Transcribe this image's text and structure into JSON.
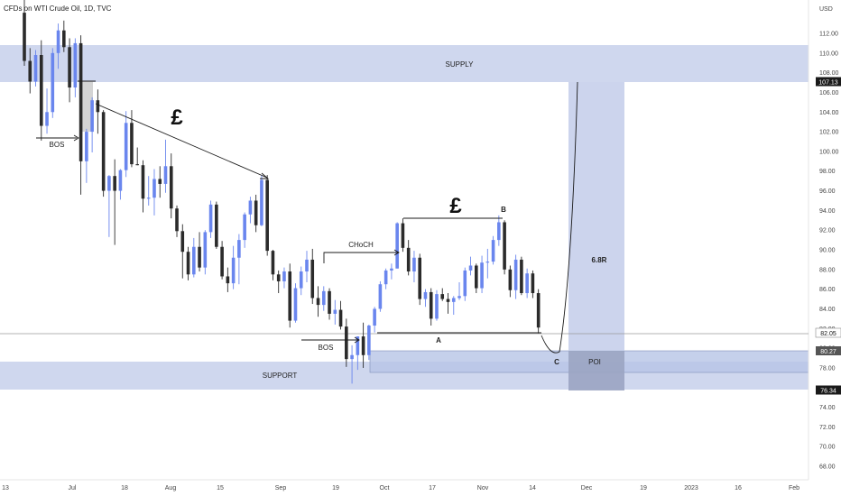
{
  "header": {
    "title": "CFDs on WTI Crude Oil, 1D, TVC",
    "currency": "USD"
  },
  "colors": {
    "up": "#6a86ee",
    "down": "#2b2b2b",
    "zone": "#aebde3",
    "zone_dark": "#8c9ed0",
    "price_tag": "#1a1a1a",
    "drawing": "#1a1a1a"
  },
  "chart_data": {
    "type": "candlestick",
    "title": "CFDs on WTI Crude Oil, 1D, TVC",
    "y_unit": "USD",
    "ylim": [
      67,
      116
    ],
    "y_ticks": [
      "68.00",
      "70.00",
      "72.00",
      "74.00",
      "76.00",
      "78.00",
      "80.00",
      "82.00",
      "84.00",
      "86.00",
      "88.00",
      "90.00",
      "92.00",
      "94.00",
      "96.00",
      "98.00",
      "100.00",
      "102.00",
      "104.00",
      "106.00",
      "108.00",
      "110.00",
      "112.00"
    ],
    "x_ticks": [
      "13",
      "Jul",
      "18",
      "Aug",
      "15",
      "Sep",
      "19",
      "Oct",
      "17",
      "Nov",
      "14",
      "Dec",
      "19",
      "2023",
      "16",
      "Feb"
    ],
    "price_labels": [
      "107.13",
      "82.05",
      "80.27",
      "76.34"
    ],
    "candles": [
      {
        "o": 114.1,
        "h": 116,
        "l": 108.7,
        "c": 109.2
      },
      {
        "o": 109.2,
        "h": 110.5,
        "l": 105.9,
        "c": 107.1
      },
      {
        "o": 107.1,
        "h": 110.3,
        "l": 106.6,
        "c": 109.8
      },
      {
        "o": 109.8,
        "h": 111.3,
        "l": 101.1,
        "c": 102.6
      },
      {
        "o": 102.6,
        "h": 106.4,
        "l": 101.8,
        "c": 104.0
      },
      {
        "o": 104.0,
        "h": 110.5,
        "l": 103.4,
        "c": 110.0
      },
      {
        "o": 110.0,
        "h": 113.0,
        "l": 108.4,
        "c": 112.3
      },
      {
        "o": 112.3,
        "h": 113.3,
        "l": 110.1,
        "c": 110.6
      },
      {
        "o": 110.6,
        "h": 111.5,
        "l": 105.0,
        "c": 106.5
      },
      {
        "o": 106.5,
        "h": 111.5,
        "l": 105.5,
        "c": 111.0
      },
      {
        "o": 111.0,
        "h": 111.8,
        "l": 95.6,
        "c": 99.0
      },
      {
        "o": 99.0,
        "h": 102.3,
        "l": 96.8,
        "c": 102.0
      },
      {
        "o": 102.0,
        "h": 105.5,
        "l": 99.9,
        "c": 105.2
      },
      {
        "o": 105.2,
        "h": 106.3,
        "l": 101.8,
        "c": 104.0
      },
      {
        "o": 104.0,
        "h": 104.2,
        "l": 95.4,
        "c": 96.0
      },
      {
        "o": 96.0,
        "h": 97.6,
        "l": 91.3,
        "c": 97.5
      },
      {
        "o": 97.5,
        "h": 99.2,
        "l": 90.5,
        "c": 96.0
      },
      {
        "o": 96.0,
        "h": 98.2,
        "l": 95.1,
        "c": 98.1
      },
      {
        "o": 98.1,
        "h": 104.1,
        "l": 97.4,
        "c": 102.9
      },
      {
        "o": 102.9,
        "h": 104.2,
        "l": 98.4,
        "c": 98.7
      },
      {
        "o": 98.7,
        "h": 100.4,
        "l": 98.6,
        "c": 98.6
      },
      {
        "o": 98.6,
        "h": 99.1,
        "l": 93.8,
        "c": 95.2
      },
      {
        "o": 95.2,
        "h": 97.5,
        "l": 94.5,
        "c": 95.3
      },
      {
        "o": 95.3,
        "h": 98.2,
        "l": 93.5,
        "c": 97.2
      },
      {
        "o": 97.2,
        "h": 98.5,
        "l": 95.3,
        "c": 96.7
      },
      {
        "o": 96.7,
        "h": 101.2,
        "l": 95.8,
        "c": 98.5
      },
      {
        "o": 98.5,
        "h": 99.8,
        "l": 93.2,
        "c": 94.2
      },
      {
        "o": 94.2,
        "h": 94.5,
        "l": 91.3,
        "c": 91.9
      },
      {
        "o": 91.9,
        "h": 92.6,
        "l": 87.1,
        "c": 89.8
      },
      {
        "o": 89.8,
        "h": 90.3,
        "l": 86.9,
        "c": 87.5
      },
      {
        "o": 87.5,
        "h": 91.2,
        "l": 87.2,
        "c": 90.3
      },
      {
        "o": 90.3,
        "h": 91.8,
        "l": 87.8,
        "c": 88.2
      },
      {
        "o": 88.2,
        "h": 92.0,
        "l": 87.5,
        "c": 91.8
      },
      {
        "o": 91.8,
        "h": 95.0,
        "l": 91.2,
        "c": 94.6
      },
      {
        "o": 94.6,
        "h": 94.9,
        "l": 90.1,
        "c": 90.3
      },
      {
        "o": 90.3,
        "h": 90.9,
        "l": 87.0,
        "c": 87.3
      },
      {
        "o": 87.3,
        "h": 88.2,
        "l": 85.7,
        "c": 86.6
      },
      {
        "o": 86.6,
        "h": 90.4,
        "l": 86.0,
        "c": 89.2
      },
      {
        "o": 89.2,
        "h": 91.6,
        "l": 86.5,
        "c": 91.0
      },
      {
        "o": 91.0,
        "h": 93.8,
        "l": 90.2,
        "c": 93.6
      },
      {
        "o": 93.6,
        "h": 95.4,
        "l": 92.7,
        "c": 95.0
      },
      {
        "o": 95.0,
        "h": 95.6,
        "l": 91.8,
        "c": 92.5
      },
      {
        "o": 92.5,
        "h": 97.6,
        "l": 92.4,
        "c": 97.1
      },
      {
        "o": 97.1,
        "h": 97.6,
        "l": 89.4,
        "c": 89.9
      },
      {
        "o": 89.9,
        "h": 90.0,
        "l": 86.9,
        "c": 87.5
      },
      {
        "o": 87.5,
        "h": 87.9,
        "l": 85.6,
        "c": 86.8
      },
      {
        "o": 86.8,
        "h": 88.2,
        "l": 86.1,
        "c": 87.8
      },
      {
        "o": 87.8,
        "h": 88.6,
        "l": 82.1,
        "c": 82.8
      },
      {
        "o": 82.8,
        "h": 86.6,
        "l": 82.6,
        "c": 86.1
      },
      {
        "o": 86.1,
        "h": 88.3,
        "l": 85.4,
        "c": 87.8
      },
      {
        "o": 87.8,
        "h": 89.9,
        "l": 86.7,
        "c": 89.0
      },
      {
        "o": 89.0,
        "h": 90.1,
        "l": 84.5,
        "c": 85.1
      },
      {
        "o": 85.1,
        "h": 86.3,
        "l": 83.2,
        "c": 84.4
      },
      {
        "o": 84.4,
        "h": 86.3,
        "l": 83.8,
        "c": 85.8
      },
      {
        "o": 85.8,
        "h": 86.1,
        "l": 82.9,
        "c": 83.5
      },
      {
        "o": 83.5,
        "h": 84.9,
        "l": 82.4,
        "c": 83.9
      },
      {
        "o": 83.9,
        "h": 84.8,
        "l": 81.9,
        "c": 82.2
      },
      {
        "o": 82.2,
        "h": 83.0,
        "l": 78.1,
        "c": 78.9
      },
      {
        "o": 78.9,
        "h": 80.3,
        "l": 76.4,
        "c": 79.3
      },
      {
        "o": 79.3,
        "h": 81.2,
        "l": 77.8,
        "c": 81.2
      },
      {
        "o": 81.2,
        "h": 82.6,
        "l": 78.0,
        "c": 79.3
      },
      {
        "o": 79.3,
        "h": 82.4,
        "l": 78.8,
        "c": 82.3
      },
      {
        "o": 82.3,
        "h": 84.2,
        "l": 81.6,
        "c": 84.0
      },
      {
        "o": 84.0,
        "h": 86.8,
        "l": 83.7,
        "c": 86.5
      },
      {
        "o": 86.5,
        "h": 88.1,
        "l": 86.0,
        "c": 87.9
      },
      {
        "o": 87.9,
        "h": 88.6,
        "l": 87.0,
        "c": 88.1
      },
      {
        "o": 88.1,
        "h": 92.8,
        "l": 88.1,
        "c": 92.7
      },
      {
        "o": 92.7,
        "h": 93.2,
        "l": 89.8,
        "c": 90.2
      },
      {
        "o": 90.2,
        "h": 91.0,
        "l": 87.4,
        "c": 87.8
      },
      {
        "o": 87.8,
        "h": 89.9,
        "l": 86.7,
        "c": 89.2
      },
      {
        "o": 89.2,
        "h": 89.6,
        "l": 84.4,
        "c": 85.0
      },
      {
        "o": 85.0,
        "h": 86.0,
        "l": 84.2,
        "c": 85.7
      },
      {
        "o": 85.7,
        "h": 86.1,
        "l": 82.3,
        "c": 83.0
      },
      {
        "o": 83.0,
        "h": 85.9,
        "l": 82.8,
        "c": 85.5
      },
      {
        "o": 85.5,
        "h": 86.1,
        "l": 84.8,
        "c": 85.0
      },
      {
        "o": 85.0,
        "h": 85.6,
        "l": 83.5,
        "c": 84.7
      },
      {
        "o": 84.7,
        "h": 85.3,
        "l": 83.4,
        "c": 85.1
      },
      {
        "o": 85.1,
        "h": 86.7,
        "l": 84.9,
        "c": 85.3
      },
      {
        "o": 85.3,
        "h": 88.2,
        "l": 84.8,
        "c": 87.9
      },
      {
        "o": 87.9,
        "h": 89.3,
        "l": 87.4,
        "c": 88.4
      },
      {
        "o": 88.4,
        "h": 88.6,
        "l": 85.6,
        "c": 86.1
      },
      {
        "o": 86.1,
        "h": 89.4,
        "l": 85.6,
        "c": 88.7
      },
      {
        "o": 88.7,
        "h": 90.1,
        "l": 87.1,
        "c": 88.8
      },
      {
        "o": 88.8,
        "h": 91.4,
        "l": 88.5,
        "c": 91.0
      },
      {
        "o": 91.0,
        "h": 93.5,
        "l": 90.4,
        "c": 92.8
      },
      {
        "o": 92.8,
        "h": 93.0,
        "l": 87.5,
        "c": 88.0
      },
      {
        "o": 88.0,
        "h": 88.4,
        "l": 85.2,
        "c": 85.9
      },
      {
        "o": 85.9,
        "h": 89.5,
        "l": 85.0,
        "c": 89.0
      },
      {
        "o": 89.0,
        "h": 89.3,
        "l": 85.4,
        "c": 85.6
      },
      {
        "o": 85.6,
        "h": 88.1,
        "l": 85.1,
        "c": 87.6
      },
      {
        "o": 87.6,
        "h": 87.9,
        "l": 85.1,
        "c": 85.6
      },
      {
        "o": 85.6,
        "h": 86.0,
        "l": 81.5,
        "c": 82.1
      }
    ]
  },
  "annotations": {
    "supply": "SUPPLY",
    "support": "SUPPORT",
    "bos_left": "BOS",
    "bos_mid": "BOS",
    "choch": "CHoCH",
    "pound_left": "£",
    "pound_right": "£",
    "point_a": "A",
    "point_b": "B",
    "point_c": "C",
    "poi": "POI",
    "ratio": "6.8R"
  }
}
